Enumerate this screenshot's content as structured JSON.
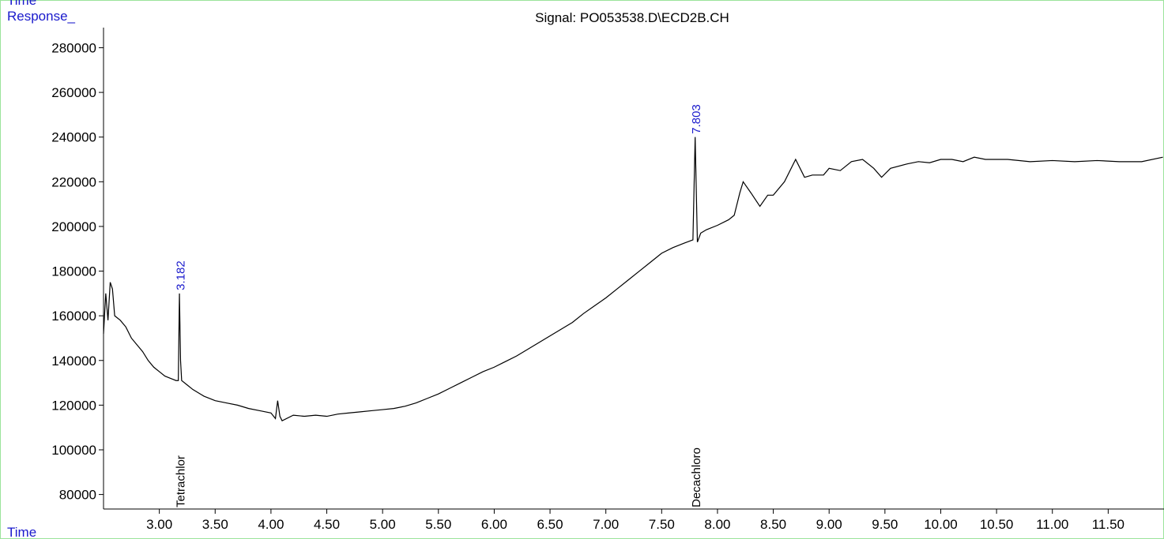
{
  "chart_data": {
    "type": "line",
    "title": "Signal: PO053538.D\\ECD2B.CH",
    "y_label": "Response_",
    "x_label": "Time",
    "top_label": "Time",
    "color": "#000000",
    "xlim": [
      2.5,
      12.0
    ],
    "ylim": [
      73500,
      289000
    ],
    "xticks": [
      {
        "value": 3,
        "label": "3.00"
      },
      {
        "value": 3.5,
        "label": "3.50"
      },
      {
        "value": 4,
        "label": "4.00"
      },
      {
        "value": 4.5,
        "label": "4.50"
      },
      {
        "value": 5,
        "label": "5.00"
      },
      {
        "value": 5.5,
        "label": "5.50"
      },
      {
        "value": 6,
        "label": "6.00"
      },
      {
        "value": 6.5,
        "label": "6.50"
      },
      {
        "value": 7,
        "label": "7.00"
      },
      {
        "value": 7.5,
        "label": "7.50"
      },
      {
        "value": 8,
        "label": "8.00"
      },
      {
        "value": 8.5,
        "label": "8.50"
      },
      {
        "value": 9,
        "label": "9.00"
      },
      {
        "value": 9.5,
        "label": "9.50"
      },
      {
        "value": 10,
        "label": "10.00"
      },
      {
        "value": 10.5,
        "label": "10.50"
      },
      {
        "value": 11,
        "label": "11.00"
      },
      {
        "value": 11.5,
        "label": "11.50"
      }
    ],
    "yticks": [
      80000,
      100000,
      120000,
      140000,
      160000,
      180000,
      200000,
      220000,
      240000,
      260000,
      280000
    ],
    "x": [
      2.5,
      2.52,
      2.54,
      2.56,
      2.58,
      2.6,
      2.65,
      2.7,
      2.75,
      2.8,
      2.85,
      2.9,
      2.95,
      3.0,
      3.05,
      3.1,
      3.15,
      3.17,
      3.18,
      3.19,
      3.2,
      3.25,
      3.3,
      3.4,
      3.5,
      3.6,
      3.7,
      3.8,
      3.9,
      4.0,
      4.04,
      4.06,
      4.08,
      4.1,
      4.2,
      4.3,
      4.4,
      4.5,
      4.6,
      4.7,
      4.8,
      4.9,
      5.0,
      5.1,
      5.2,
      5.3,
      5.4,
      5.5,
      5.6,
      5.7,
      5.8,
      5.9,
      6.0,
      6.1,
      6.2,
      6.3,
      6.4,
      6.5,
      6.6,
      6.7,
      6.8,
      6.9,
      7.0,
      7.1,
      7.2,
      7.3,
      7.4,
      7.5,
      7.6,
      7.7,
      7.78,
      7.8,
      7.82,
      7.85,
      7.9,
      8.0,
      8.1,
      8.15,
      8.2,
      8.23,
      8.3,
      8.38,
      8.45,
      8.5,
      8.6,
      8.7,
      8.78,
      8.85,
      8.95,
      9.0,
      9.1,
      9.2,
      9.3,
      9.4,
      9.47,
      9.55,
      9.7,
      9.8,
      9.9,
      10.0,
      10.1,
      10.2,
      10.3,
      10.4,
      10.6,
      10.8,
      11.0,
      11.2,
      11.4,
      11.6,
      11.8,
      11.99
    ],
    "values": [
      152000,
      170000,
      158000,
      175000,
      172000,
      160000,
      158000,
      155000,
      150000,
      147000,
      144000,
      140000,
      137000,
      135000,
      133000,
      132000,
      131000,
      131000,
      170000,
      140000,
      131000,
      129000,
      127000,
      124000,
      122000,
      121000,
      120000,
      118500,
      117500,
      116500,
      114000,
      122000,
      115000,
      113000,
      115500,
      115000,
      115500,
      115000,
      116000,
      116500,
      117000,
      117500,
      118000,
      118500,
      119500,
      121000,
      123000,
      125000,
      127500,
      130000,
      132500,
      135000,
      137000,
      139500,
      142000,
      145000,
      148000,
      151000,
      154000,
      157000,
      161000,
      164500,
      168000,
      172000,
      176000,
      180000,
      184000,
      188000,
      190500,
      192500,
      194000,
      240000,
      193000,
      197000,
      198500,
      200500,
      203000,
      205000,
      215000,
      220000,
      215000,
      209000,
      214000,
      214000,
      220000,
      230000,
      222000,
      223000,
      223000,
      226000,
      225000,
      229000,
      230000,
      226000,
      222000,
      226000,
      228000,
      229000,
      228500,
      230000,
      230000,
      229000,
      231000,
      230000,
      230000,
      229000,
      229500,
      229000,
      229500,
      229000,
      229000,
      231000
    ],
    "peaks": [
      {
        "x": 3.182,
        "name": "Tetrachlor"
      },
      {
        "x": 7.803,
        "name": "Decachloro"
      }
    ]
  }
}
